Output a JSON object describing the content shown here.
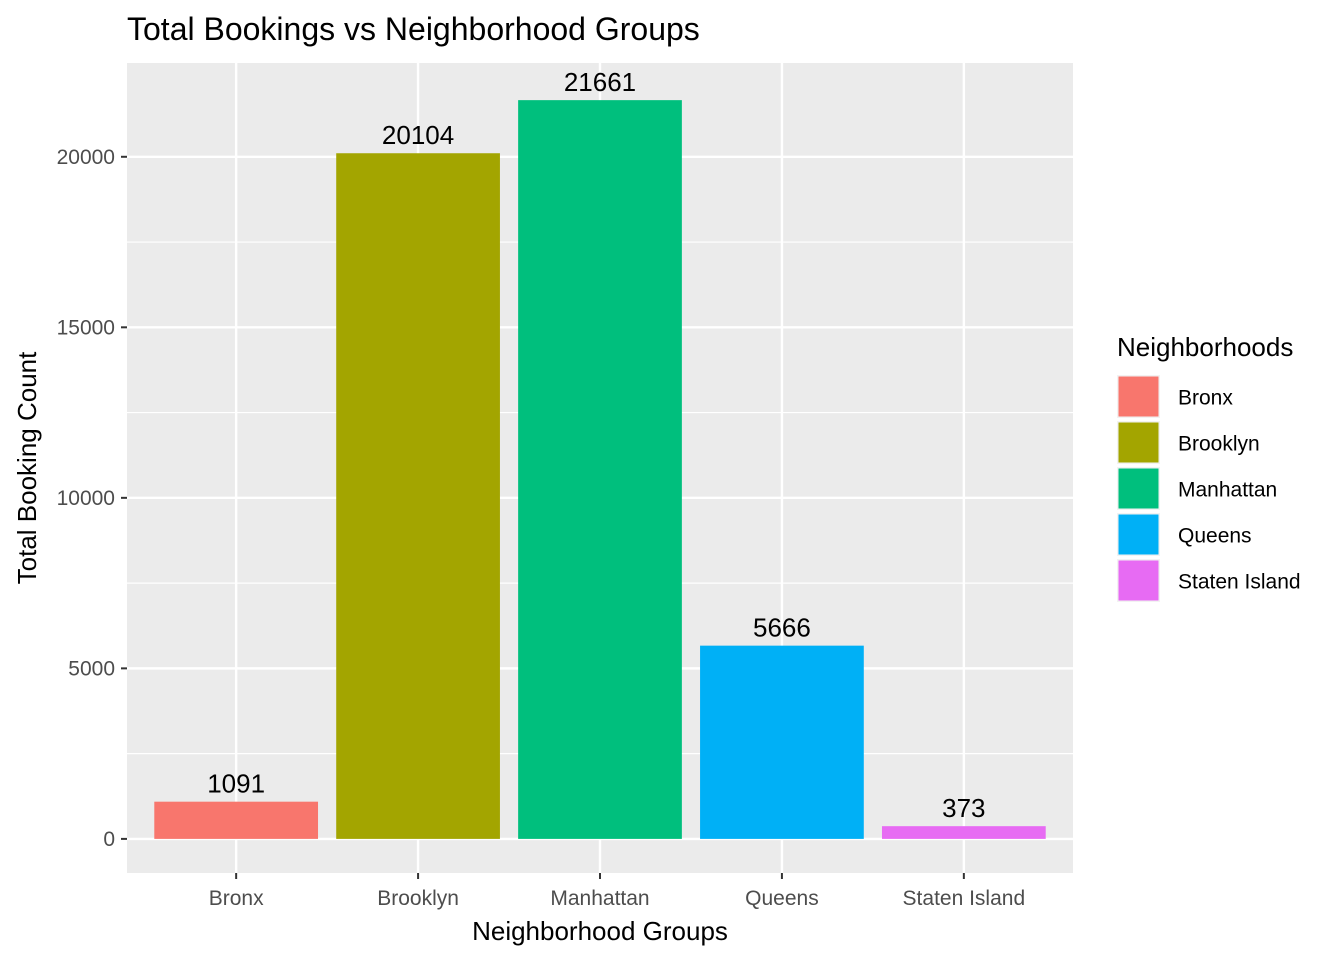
{
  "chart_data": {
    "type": "bar",
    "title": "Total Bookings vs Neighborhood Groups",
    "xlabel": "Neighborhood Groups",
    "ylabel": "Total Booking Count",
    "categories": [
      "Bronx",
      "Brooklyn",
      "Manhattan",
      "Queens",
      "Staten Island"
    ],
    "values": [
      1091,
      20104,
      21661,
      5666,
      373
    ],
    "data_labels": [
      "1091",
      "20104",
      "21661",
      "5666",
      "373"
    ],
    "colors": [
      "#F8766D",
      "#A3A500",
      "#00BF7D",
      "#00B0F6",
      "#E76BF3"
    ],
    "ylim": [
      -1000,
      22750
    ],
    "yticks": [
      0,
      5000,
      10000,
      15000,
      20000
    ],
    "ytick_labels": [
      "0",
      "5000",
      "10000",
      "15000",
      "20000"
    ],
    "grid": true,
    "panel_background": "#EBEBEB",
    "legend": {
      "title": "Neighborhoods",
      "position": "right",
      "entries": [
        "Bronx",
        "Brooklyn",
        "Manhattan",
        "Queens",
        "Staten Island"
      ]
    }
  }
}
